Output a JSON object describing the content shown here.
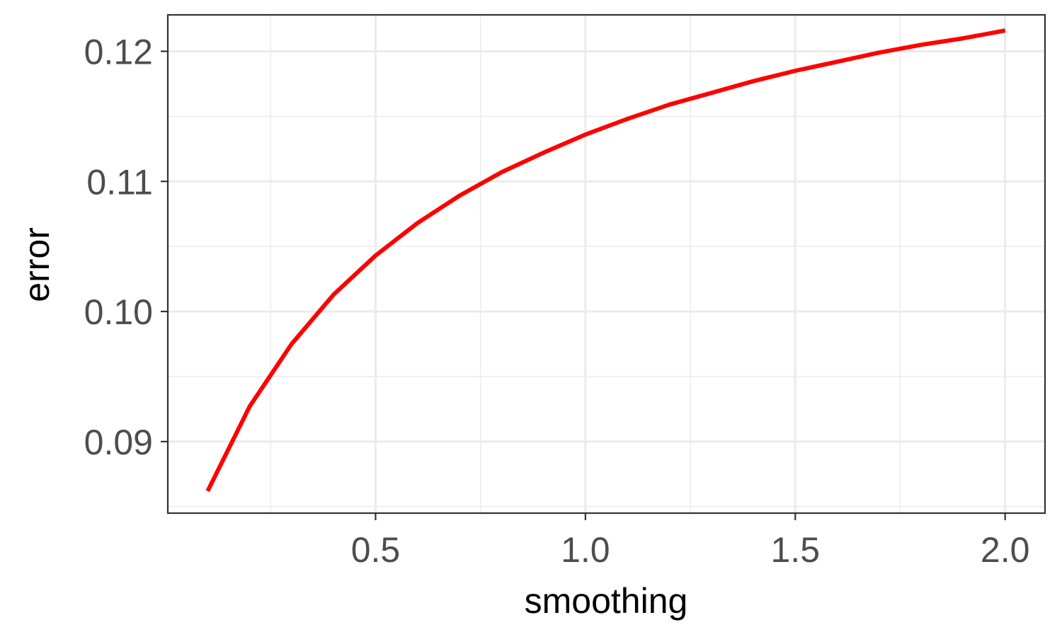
{
  "chart_data": {
    "type": "line",
    "title": "",
    "xlabel": "smoothing",
    "ylabel": "error",
    "xlim": [
      0.005,
      2.095
    ],
    "ylim": [
      0.0845,
      0.1228
    ],
    "x_ticks": [
      0.5,
      1.0,
      1.5,
      2.0
    ],
    "x_tick_labels": [
      "0.5",
      "1.0",
      "1.5",
      "2.0"
    ],
    "y_ticks": [
      0.09,
      0.1,
      0.11,
      0.12
    ],
    "y_tick_labels": [
      "0.09",
      "0.10",
      "0.11",
      "0.12"
    ],
    "x_minor_ticks": [
      0.25,
      0.75,
      1.25,
      1.75
    ],
    "y_minor_ticks": [
      0.085,
      0.095,
      0.105,
      0.115
    ],
    "grid": true,
    "legend": "none",
    "line_color": "#ff0000",
    "gridline_color": "#ebebeb",
    "border_color": "#333333",
    "series": [
      {
        "x": [
          0.1,
          0.2,
          0.3,
          0.4,
          0.5,
          0.6,
          0.7,
          0.8,
          0.9,
          1.0,
          1.1,
          1.2,
          1.3,
          1.4,
          1.5,
          1.6,
          1.7,
          1.8,
          1.9,
          2.0
        ],
        "values": [
          0.0862,
          0.0927,
          0.0975,
          0.1013,
          0.1043,
          0.1068,
          0.1089,
          0.1107,
          0.1122,
          0.1136,
          0.1148,
          0.1159,
          0.1168,
          0.1177,
          0.1185,
          0.1192,
          0.1199,
          0.1205,
          0.121,
          0.1216
        ]
      }
    ]
  }
}
